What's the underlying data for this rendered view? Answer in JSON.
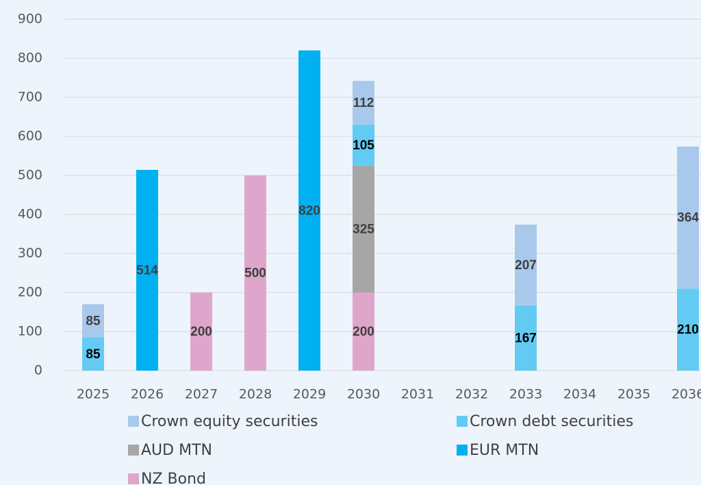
{
  "chart_data": {
    "type": "stacked_bar",
    "categories": [
      "2025",
      "2026",
      "2027",
      "2028",
      "2029",
      "2030",
      "2031",
      "2032",
      "2033",
      "2034",
      "2035",
      "2036"
    ],
    "series": [
      {
        "name": "NZ Bond",
        "color": "#dea6cb",
        "label_color": "#404040",
        "values": [
          null,
          null,
          200,
          500,
          null,
          200,
          null,
          null,
          null,
          null,
          null,
          null
        ]
      },
      {
        "name": "AUD MTN",
        "color": "#a6a6a6",
        "label_color": "#404040",
        "values": [
          null,
          null,
          null,
          null,
          null,
          325,
          null,
          null,
          null,
          null,
          null,
          null
        ]
      },
      {
        "name": "EUR MTN",
        "color": "#00b0f0",
        "label_color": "#404040",
        "values": [
          null,
          514,
          null,
          null,
          820,
          null,
          null,
          null,
          null,
          null,
          null,
          null
        ]
      },
      {
        "name": "Crown debt securities",
        "color": "#63cbf3",
        "label_color": "#000000",
        "values": [
          85,
          null,
          null,
          null,
          null,
          105,
          null,
          null,
          167,
          null,
          null,
          210
        ]
      },
      {
        "name": "Crown equity securities",
        "color": "#a9c9ec",
        "label_color": "#404040",
        "values": [
          85,
          null,
          null,
          null,
          null,
          112,
          null,
          null,
          207,
          null,
          null,
          364
        ]
      }
    ],
    "ylim": [
      0,
      900
    ],
    "yticks": [
      0,
      100,
      200,
      300,
      400,
      500,
      600,
      700,
      800,
      900
    ],
    "grid": true
  }
}
